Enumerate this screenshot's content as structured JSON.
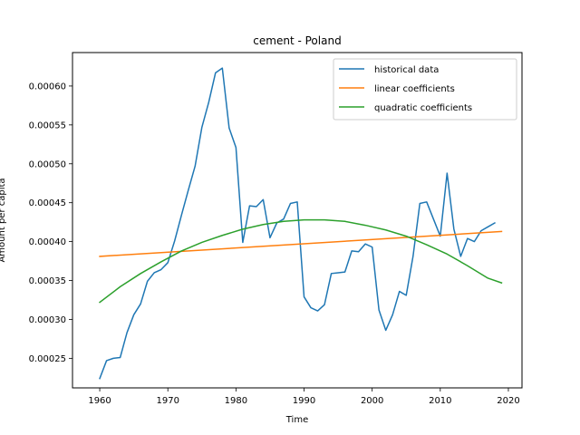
{
  "chart_data": {
    "type": "line",
    "title": "cement - Poland",
    "xlabel": "Time",
    "ylabel": "Amount per capita",
    "xlim": [
      1956,
      2022
    ],
    "ylim": [
      0.000212,
      0.000643
    ],
    "xticks": [
      1960,
      1970,
      1980,
      1990,
      2000,
      2010,
      2020
    ],
    "yticks": [
      0.00025,
      0.0003,
      0.00035,
      0.0004,
      0.00045,
      0.0005,
      0.00055,
      0.0006
    ],
    "ytick_labels": [
      "0.00025",
      "0.00030",
      "0.00035",
      "0.00040",
      "0.00045",
      "0.00050",
      "0.00055",
      "0.00060"
    ],
    "grid": false,
    "legend_position": "top-right",
    "series": [
      {
        "name": "historical data",
        "color": "#1f77b4",
        "x": [
          1960,
          1961,
          1962,
          1963,
          1964,
          1965,
          1966,
          1967,
          1968,
          1969,
          1970,
          1971,
          1972,
          1973,
          1974,
          1975,
          1976,
          1977,
          1978,
          1979,
          1980,
          1981,
          1982,
          1983,
          1984,
          1985,
          1986,
          1987,
          1988,
          1989,
          1990,
          1991,
          1992,
          1993,
          1994,
          1995,
          1996,
          1997,
          1998,
          1999,
          2000,
          2001,
          2002,
          2003,
          2004,
          2005,
          2006,
          2007,
          2008,
          2009,
          2010,
          2011,
          2012,
          2013,
          2014,
          2015,
          2016,
          2017,
          2018
        ],
        "y": [
          0.000224,
          0.000247,
          0.00025,
          0.000251,
          0.000283,
          0.000306,
          0.00032,
          0.000349,
          0.00036,
          0.000364,
          0.000373,
          0.000401,
          0.000434,
          0.000466,
          0.000497,
          0.000547,
          0.000579,
          0.000617,
          0.000623,
          0.000546,
          0.000521,
          0.000399,
          0.000446,
          0.000445,
          0.000454,
          0.000405,
          0.000424,
          0.000429,
          0.000449,
          0.000451,
          0.000329,
          0.000315,
          0.000311,
          0.000319,
          0.000359,
          0.00036,
          0.000361,
          0.000388,
          0.000387,
          0.000397,
          0.000393,
          0.000312,
          0.000286,
          0.000306,
          0.000336,
          0.000331,
          0.000381,
          0.000449,
          0.000451,
          0.000429,
          0.000407,
          0.000488,
          0.000416,
          0.000381,
          0.000404,
          0.0004,
          0.000414,
          0.000419,
          0.000424
        ]
      },
      {
        "name": "linear coefficients",
        "color": "#ff7f0e",
        "x": [
          1960,
          2019
        ],
        "y": [
          0.000381,
          0.000413
        ]
      },
      {
        "name": "quadratic coefficients",
        "color": "#2ca02c",
        "x": [
          1960,
          1963,
          1966,
          1969,
          1972,
          1975,
          1978,
          1981,
          1984,
          1987,
          1990,
          1993,
          1996,
          1999,
          2002,
          2005,
          2008,
          2011,
          2014,
          2017,
          2019
        ],
        "y": [
          0.000322,
          0.000342,
          0.000359,
          0.000374,
          0.000388,
          0.000399,
          0.000408,
          0.000416,
          0.000422,
          0.000426,
          0.000428,
          0.000428,
          0.000426,
          0.000421,
          0.000415,
          0.000407,
          0.000396,
          0.000384,
          0.000369,
          0.000353,
          0.000347
        ]
      }
    ]
  }
}
